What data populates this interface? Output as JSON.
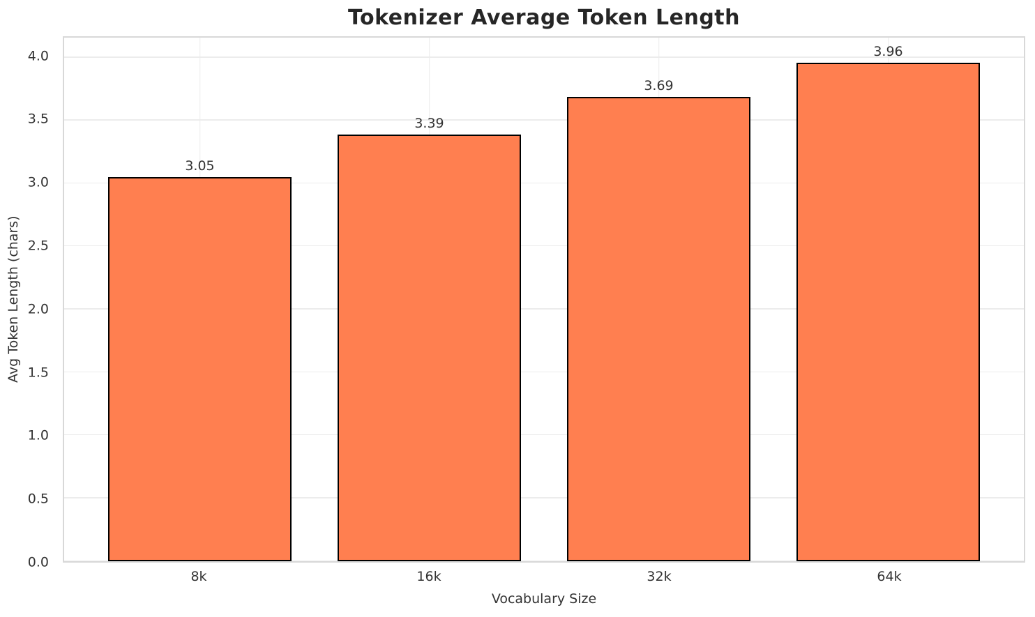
{
  "chart_data": {
    "type": "bar",
    "title": "Tokenizer Average Token Length",
    "xlabel": "Vocabulary Size",
    "ylabel": "Avg Token Length (chars)",
    "categories": [
      "8k",
      "16k",
      "32k",
      "64k"
    ],
    "values": [
      3.05,
      3.39,
      3.69,
      3.96
    ],
    "value_labels": [
      "3.05",
      "3.39",
      "3.69",
      "3.96"
    ],
    "ylim": [
      0,
      4.158
    ],
    "yticks": [
      0.0,
      0.5,
      1.0,
      1.5,
      2.0,
      2.5,
      3.0,
      3.5,
      4.0
    ],
    "ytick_labels": [
      "0.0",
      "0.5",
      "1.0",
      "1.5",
      "2.0",
      "2.5",
      "3.0",
      "3.5",
      "4.0"
    ],
    "grid": true,
    "grid_orientation": "both",
    "legend": null,
    "colors": {
      "bar_fill": "#FF7F50",
      "bar_edge": "#000000",
      "grid_line": "#ECECEC",
      "spine": "#D8D8D8",
      "title_text": "#262626",
      "tick_text": "#333333",
      "background": "#FFFFFF"
    }
  }
}
